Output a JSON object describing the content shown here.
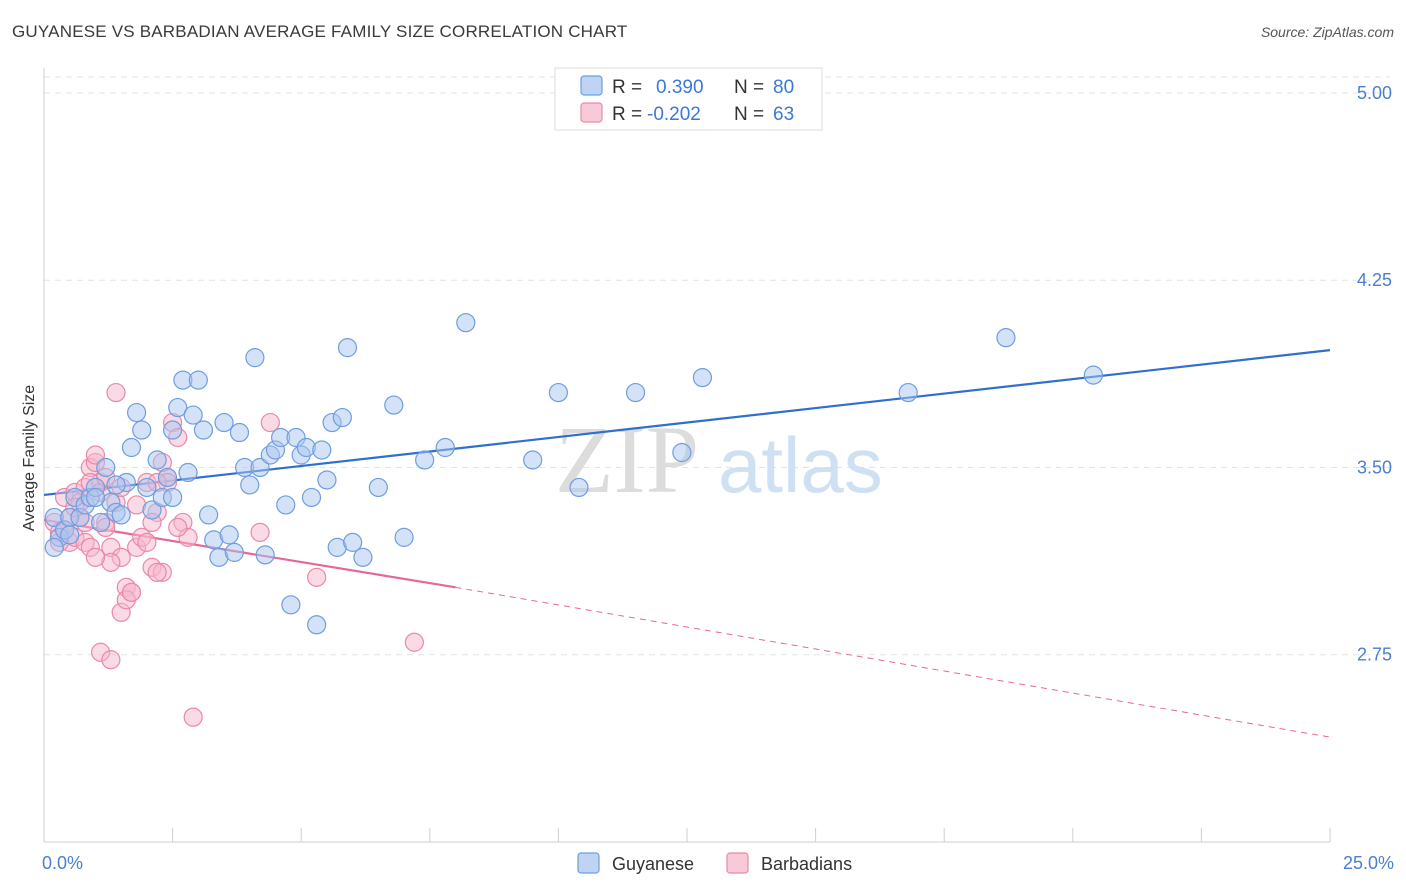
{
  "title": "GUYANESE VS BARBADIAN AVERAGE FAMILY SIZE CORRELATION CHART",
  "source": "Source: ZipAtlas.com",
  "watermark": {
    "zip": "ZIP",
    "atlas": "atlas"
  },
  "colors": {
    "guyanese_fill": "#a9c6ef",
    "guyanese_stroke": "#6f9de0",
    "guyanese_line": "#2f6fd0",
    "barbadian_fill": "#f5b8cb",
    "barbadian_stroke": "#e989a8",
    "barbadian_line": "#e4689a",
    "tick_label": "#4a7fd0",
    "grid": "#e3e3e3"
  },
  "legend": {
    "rows": [
      {
        "r_label": "R =",
        "r_value": "0.390",
        "n_label": "N =",
        "n_value": "80"
      },
      {
        "r_label": "R =",
        "r_value": "-0.202",
        "n_label": "N =",
        "n_value": "63"
      }
    ]
  },
  "chart_data": {
    "type": "scatter",
    "title": "GUYANESE VS BARBADIAN AVERAGE FAMILY SIZE CORRELATION CHART",
    "xlabel": "",
    "ylabel": "Average Family Size",
    "xlim": [
      0,
      25
    ],
    "ylim": [
      2.0,
      5.1
    ],
    "x_tick_labels": [
      "0.0%",
      "25.0%"
    ],
    "y_ticks": [
      2.75,
      3.5,
      4.25,
      5.0
    ],
    "y_tick_labels": [
      "2.75",
      "3.50",
      "4.25",
      "5.00"
    ],
    "grid": true,
    "legend_position": "top-center",
    "series": [
      {
        "name": "Guyanese",
        "trend": {
          "x": [
            0.0,
            25.0
          ],
          "y": [
            3.39,
            3.97
          ]
        },
        "points": [
          [
            0.2,
            3.3
          ],
          [
            0.3,
            3.22
          ],
          [
            0.4,
            3.25
          ],
          [
            0.5,
            3.3
          ],
          [
            0.6,
            3.38
          ],
          [
            0.7,
            3.3
          ],
          [
            0.8,
            3.35
          ],
          [
            0.9,
            3.38
          ],
          [
            1.0,
            3.42
          ],
          [
            1.1,
            3.28
          ],
          [
            1.2,
            3.5
          ],
          [
            1.3,
            3.36
          ],
          [
            1.4,
            3.32
          ],
          [
            1.5,
            3.31
          ],
          [
            1.6,
            3.44
          ],
          [
            1.7,
            3.58
          ],
          [
            1.8,
            3.72
          ],
          [
            1.9,
            3.65
          ],
          [
            2.0,
            3.42
          ],
          [
            2.1,
            3.33
          ],
          [
            2.2,
            3.53
          ],
          [
            2.3,
            3.38
          ],
          [
            2.4,
            3.46
          ],
          [
            2.5,
            3.65
          ],
          [
            2.6,
            3.74
          ],
          [
            2.7,
            3.85
          ],
          [
            2.8,
            3.48
          ],
          [
            2.9,
            3.71
          ],
          [
            3.0,
            3.85
          ],
          [
            3.1,
            3.65
          ],
          [
            3.2,
            3.31
          ],
          [
            3.3,
            3.21
          ],
          [
            3.4,
            3.14
          ],
          [
            3.5,
            3.68
          ],
          [
            3.6,
            3.23
          ],
          [
            3.7,
            3.16
          ],
          [
            3.8,
            3.64
          ],
          [
            3.9,
            3.5
          ],
          [
            4.0,
            3.43
          ],
          [
            4.1,
            3.94
          ],
          [
            4.2,
            3.5
          ],
          [
            4.3,
            3.15
          ],
          [
            4.4,
            3.55
          ],
          [
            4.5,
            3.57
          ],
          [
            4.6,
            3.62
          ],
          [
            4.7,
            3.35
          ],
          [
            4.8,
            2.95
          ],
          [
            4.9,
            3.62
          ],
          [
            5.0,
            3.55
          ],
          [
            5.1,
            3.58
          ],
          [
            5.2,
            3.38
          ],
          [
            5.3,
            2.87
          ],
          [
            5.4,
            3.57
          ],
          [
            5.5,
            3.45
          ],
          [
            5.6,
            3.68
          ],
          [
            5.7,
            3.18
          ],
          [
            5.8,
            3.7
          ],
          [
            5.9,
            3.98
          ],
          [
            6.0,
            3.2
          ],
          [
            6.2,
            3.14
          ],
          [
            6.5,
            3.42
          ],
          [
            6.8,
            3.75
          ],
          [
            7.0,
            3.22
          ],
          [
            7.4,
            3.53
          ],
          [
            7.8,
            3.58
          ],
          [
            8.2,
            4.08
          ],
          [
            9.5,
            3.53
          ],
          [
            10.0,
            3.8
          ],
          [
            10.4,
            3.42
          ],
          [
            11.5,
            3.8
          ],
          [
            12.4,
            3.56
          ],
          [
            12.8,
            3.86
          ],
          [
            16.8,
            3.8
          ],
          [
            18.7,
            4.02
          ],
          [
            20.4,
            3.87
          ],
          [
            1.4,
            3.43
          ],
          [
            2.5,
            3.38
          ],
          [
            0.2,
            3.18
          ],
          [
            0.5,
            3.23
          ],
          [
            1.0,
            3.38
          ]
        ]
      },
      {
        "name": "Barbadians",
        "trend": {
          "x": [
            0.0,
            8.0
          ],
          "y": [
            3.29,
            3.02
          ]
        },
        "trend_extended": {
          "x": [
            8.0,
            25.0
          ],
          "y": [
            3.02,
            2.42
          ]
        },
        "points": [
          [
            0.2,
            3.28
          ],
          [
            0.3,
            3.24
          ],
          [
            0.4,
            3.38
          ],
          [
            0.5,
            3.2
          ],
          [
            0.6,
            3.4
          ],
          [
            0.7,
            3.3
          ],
          [
            0.8,
            3.42
          ],
          [
            0.9,
            3.5
          ],
          [
            1.0,
            3.52
          ],
          [
            1.1,
            3.44
          ],
          [
            1.2,
            3.28
          ],
          [
            1.3,
            3.18
          ],
          [
            1.4,
            3.36
          ],
          [
            1.5,
            3.14
          ],
          [
            1.6,
            3.02
          ],
          [
            1.7,
            3.0
          ],
          [
            1.8,
            3.18
          ],
          [
            1.9,
            3.22
          ],
          [
            2.0,
            3.44
          ],
          [
            2.1,
            3.1
          ],
          [
            2.2,
            3.32
          ],
          [
            2.3,
            3.08
          ],
          [
            2.4,
            3.46
          ],
          [
            2.5,
            3.68
          ],
          [
            2.6,
            3.62
          ],
          [
            2.7,
            3.28
          ],
          [
            2.8,
            3.22
          ],
          [
            2.9,
            2.5
          ],
          [
            0.3,
            3.2
          ],
          [
            0.5,
            3.3
          ],
          [
            0.6,
            3.22
          ],
          [
            0.8,
            3.2
          ],
          [
            0.9,
            3.44
          ],
          [
            1.0,
            3.55
          ],
          [
            1.1,
            3.4
          ],
          [
            1.2,
            3.46
          ],
          [
            1.3,
            3.12
          ],
          [
            1.4,
            3.8
          ],
          [
            1.5,
            2.92
          ],
          [
            1.6,
            2.97
          ],
          [
            1.8,
            3.35
          ],
          [
            2.0,
            3.2
          ],
          [
            2.2,
            3.08
          ],
          [
            2.4,
            3.44
          ],
          [
            2.6,
            3.26
          ],
          [
            4.2,
            3.24
          ],
          [
            4.4,
            3.68
          ],
          [
            5.3,
            3.06
          ],
          [
            7.2,
            2.8
          ],
          [
            1.1,
            2.76
          ],
          [
            1.3,
            2.73
          ],
          [
            0.4,
            3.25
          ],
          [
            0.7,
            3.36
          ],
          [
            0.9,
            3.18
          ],
          [
            1.2,
            3.26
          ],
          [
            1.5,
            3.42
          ],
          [
            1.7,
            3.0
          ],
          [
            2.1,
            3.28
          ],
          [
            2.3,
            3.52
          ],
          [
            0.6,
            3.34
          ],
          [
            0.8,
            3.28
          ],
          [
            1.0,
            3.14
          ],
          [
            2.2,
            3.44
          ]
        ]
      }
    ]
  },
  "bottom_legend": [
    {
      "label": "Guyanese"
    },
    {
      "label": "Barbadians"
    }
  ]
}
